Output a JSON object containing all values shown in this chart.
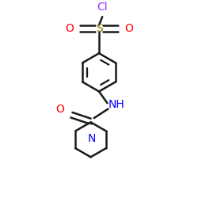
{
  "bg_color": "#ffffff",
  "bond_color": "#1a1a1a",
  "Cl_color": "#9b30ff",
  "S_color": "#808000",
  "O_color": "#ff0000",
  "N_color": "#0000ff",
  "lw": 1.8,
  "fig_size": [
    2.5,
    2.5
  ],
  "dpi": 100,
  "xlim": [
    -1.0,
    1.0
  ],
  "ylim": [
    -1.15,
    1.15
  ]
}
